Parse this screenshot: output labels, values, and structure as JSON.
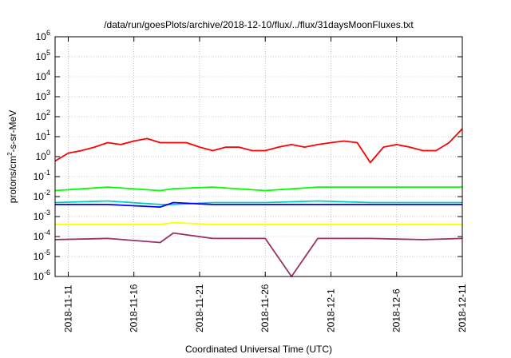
{
  "chart_data": {
    "type": "line",
    "title": "/data/run/goesPlots/archive/2018-12-10/flux/../flux/31daysMoonFluxes.txt",
    "xlabel": "Coordinated Universal Time (UTC)",
    "ylabel_prefix": "protons/cm",
    "ylabel_sup": "2",
    "ylabel_suffix": "-s-sr-MeV",
    "ylim": [
      1e-06,
      1000000.0
    ],
    "y_scale": "log",
    "y_ticks": [
      {
        "base": "10",
        "exp": "-6",
        "value": 1e-06
      },
      {
        "base": "10",
        "exp": "-5",
        "value": 1e-05
      },
      {
        "base": "10",
        "exp": "-4",
        "value": 0.0001
      },
      {
        "base": "10",
        "exp": "-3",
        "value": 0.001
      },
      {
        "base": "10",
        "exp": "-2",
        "value": 0.01
      },
      {
        "base": "10",
        "exp": "-1",
        "value": 0.1
      },
      {
        "base": "10",
        "exp": "0",
        "value": 1
      },
      {
        "base": "10",
        "exp": "1",
        "value": 10
      },
      {
        "base": "10",
        "exp": "2",
        "value": 100
      },
      {
        "base": "10",
        "exp": "3",
        "value": 1000
      },
      {
        "base": "10",
        "exp": "4",
        "value": 10000
      },
      {
        "base": "10",
        "exp": "5",
        "value": 100000
      },
      {
        "base": "10",
        "exp": "6",
        "value": 1000000
      }
    ],
    "xlim": [
      "2018-11-10",
      "2018-12-11"
    ],
    "x_ticks": [
      "2018-11-11",
      "2018-11-16",
      "2018-11-21",
      "2018-11-26",
      "2018-12-1",
      "2018-12-6",
      "2018-12-11"
    ],
    "grid": true,
    "legend": "none",
    "series": [
      {
        "color": "#ff0000",
        "x": [
          "2018-11-10",
          "2018-11-11",
          "2018-11-12",
          "2018-11-13",
          "2018-11-14",
          "2018-11-15",
          "2018-11-16",
          "2018-11-17",
          "2018-11-18",
          "2018-11-19",
          "2018-11-20",
          "2018-11-21",
          "2018-11-22",
          "2018-11-23",
          "2018-11-24",
          "2018-11-25",
          "2018-11-26",
          "2018-11-27",
          "2018-11-28",
          "2018-11-29",
          "2018-11-30",
          "2018-12-01",
          "2018-12-02",
          "2018-12-03",
          "2018-12-04",
          "2018-12-05",
          "2018-12-06",
          "2018-12-07",
          "2018-12-08",
          "2018-12-09",
          "2018-12-10",
          "2018-12-11"
        ],
        "y": [
          0.6,
          1.5,
          2,
          3,
          5,
          4,
          6,
          8,
          5,
          5,
          5,
          3,
          2,
          3,
          3,
          2,
          2,
          3,
          4,
          3,
          4,
          5,
          6,
          5,
          0.5,
          3,
          4,
          3,
          2,
          2,
          5,
          25
        ]
      },
      {
        "color": "#00ff00",
        "x": [
          "2018-11-10",
          "2018-11-14",
          "2018-11-18",
          "2018-11-19",
          "2018-11-22",
          "2018-11-26",
          "2018-11-30",
          "2018-12-04",
          "2018-12-08",
          "2018-12-11"
        ],
        "y": [
          0.02,
          0.03,
          0.02,
          0.025,
          0.03,
          0.02,
          0.03,
          0.03,
          0.03,
          0.03
        ]
      },
      {
        "color": "#00cccc",
        "x": [
          "2018-11-10",
          "2018-11-14",
          "2018-11-18",
          "2018-11-19",
          "2018-11-22",
          "2018-11-26",
          "2018-11-30",
          "2018-12-04",
          "2018-12-08",
          "2018-12-11"
        ],
        "y": [
          0.005,
          0.006,
          0.004,
          0.004,
          0.005,
          0.005,
          0.006,
          0.005,
          0.005,
          0.005
        ]
      },
      {
        "color": "#0000ff",
        "x": [
          "2018-11-10",
          "2018-11-14",
          "2018-11-18",
          "2018-11-19",
          "2018-11-22",
          "2018-11-26",
          "2018-11-30",
          "2018-12-04",
          "2018-12-08",
          "2018-12-11"
        ],
        "y": [
          0.004,
          0.004,
          0.003,
          0.005,
          0.004,
          0.004,
          0.004,
          0.004,
          0.004,
          0.004
        ]
      },
      {
        "color": "#ffff00",
        "x": [
          "2018-11-10",
          "2018-11-14",
          "2018-11-18",
          "2018-11-19",
          "2018-11-22",
          "2018-11-26",
          "2018-11-30",
          "2018-12-04",
          "2018-12-08",
          "2018-12-11"
        ],
        "y": [
          0.0004,
          0.0004,
          0.0004,
          0.0005,
          0.0004,
          0.0004,
          0.0004,
          0.0004,
          0.0004,
          0.0004
        ]
      },
      {
        "color": "#993366",
        "x": [
          "2018-11-10",
          "2018-11-14",
          "2018-11-18",
          "2018-11-19",
          "2018-11-22",
          "2018-11-26",
          "2018-11-28",
          "2018-11-30",
          "2018-12-04",
          "2018-12-08",
          "2018-12-11"
        ],
        "y": [
          7e-05,
          8e-05,
          5e-05,
          0.00015,
          8e-05,
          8e-05,
          1e-06,
          8e-05,
          8e-05,
          7e-05,
          8e-05
        ]
      }
    ]
  }
}
